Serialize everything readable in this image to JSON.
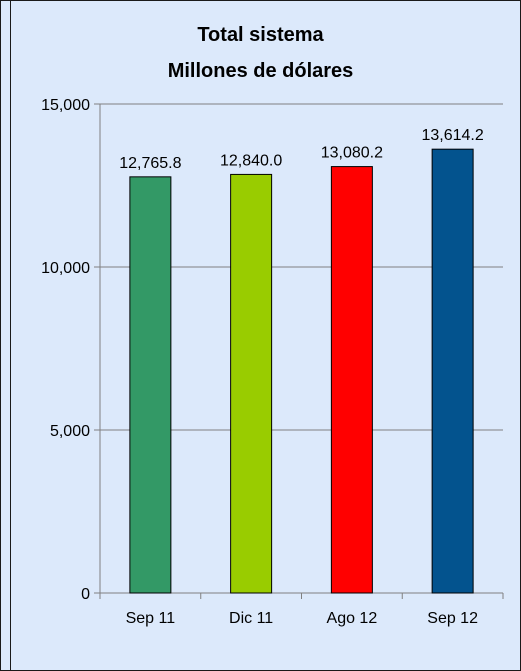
{
  "chart_data": {
    "type": "bar",
    "title": "Total sistema",
    "subtitle": "Millones de dólares",
    "xlabel": "",
    "ylabel": "",
    "categories": [
      "Sep 11",
      "Dic 11",
      "Ago 12",
      "Sep 12"
    ],
    "values": [
      12765.8,
      12840.0,
      13080.2,
      13614.2
    ],
    "value_labels": [
      "12,765.8",
      "12,840.0",
      "13,080.2",
      "13,614.2"
    ],
    "bar_colors": [
      "#339966",
      "#99cc00",
      "#ff0000",
      "#03538e"
    ],
    "ylim": [
      0,
      15000
    ],
    "yticks": [
      0,
      5000,
      10000,
      15000
    ],
    "ytick_labels": [
      "0",
      "5,000",
      "10,000",
      "15,000"
    ],
    "grid": true,
    "legend": "none",
    "background_color": "#dce9fb",
    "gridline_color": "#808080"
  }
}
